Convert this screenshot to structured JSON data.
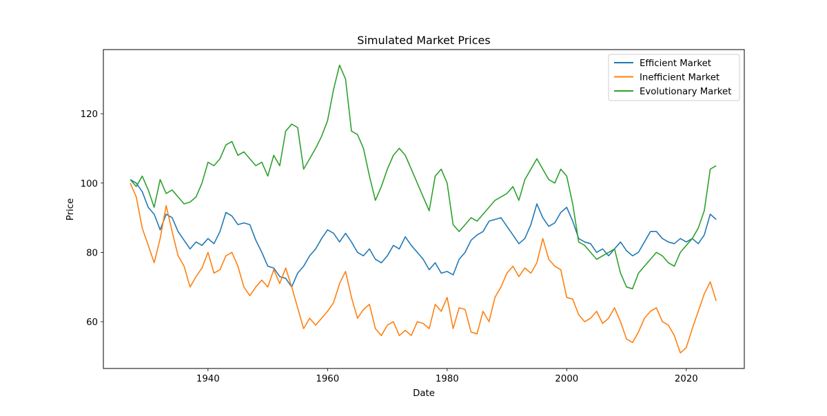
{
  "chart_data": {
    "type": "line",
    "title": "Simulated Market Prices",
    "xlabel": "Date",
    "ylabel": "Price",
    "xlim": [
      1922.5,
      2029.7
    ],
    "ylim": [
      46.5,
      138.5
    ],
    "x_ticks": [
      1940,
      1960,
      1980,
      2000,
      2020
    ],
    "x_tick_labels": [
      "1940",
      "1960",
      "1980",
      "2000",
      "2020"
    ],
    "y_ticks": [
      60,
      80,
      100,
      120
    ],
    "y_tick_labels": [
      "60",
      "80",
      "100",
      "120"
    ],
    "grid": false,
    "legend_position": "top-right",
    "series": [
      {
        "name": "Efficient Market",
        "color": "#1f77b4",
        "points": [
          [
            1927,
            101
          ],
          [
            1928,
            100
          ],
          [
            1929,
            97.5
          ],
          [
            1930,
            93
          ],
          [
            1931,
            91
          ],
          [
            1932,
            86.5
          ],
          [
            1933,
            91
          ],
          [
            1934,
            90
          ],
          [
            1935,
            86
          ],
          [
            1936,
            83.5
          ],
          [
            1937,
            81
          ],
          [
            1938,
            83
          ],
          [
            1939,
            82
          ],
          [
            1940,
            84
          ],
          [
            1941,
            82.5
          ],
          [
            1942,
            86
          ],
          [
            1943,
            91.5
          ],
          [
            1944,
            90.5
          ],
          [
            1945,
            88
          ],
          [
            1946,
            88.5
          ],
          [
            1947,
            88
          ],
          [
            1948,
            83.5
          ],
          [
            1949,
            80
          ],
          [
            1950,
            76
          ],
          [
            1951,
            75.5
          ],
          [
            1952,
            73
          ],
          [
            1953,
            72.5
          ],
          [
            1954,
            70
          ],
          [
            1955,
            74
          ],
          [
            1956,
            76
          ],
          [
            1957,
            79
          ],
          [
            1958,
            81
          ],
          [
            1959,
            84
          ],
          [
            1960,
            86.5
          ],
          [
            1961,
            85.5
          ],
          [
            1962,
            83
          ],
          [
            1963,
            85.5
          ],
          [
            1964,
            83
          ],
          [
            1965,
            80
          ],
          [
            1966,
            79
          ],
          [
            1967,
            81
          ],
          [
            1968,
            78
          ],
          [
            1969,
            77
          ],
          [
            1970,
            79
          ],
          [
            1971,
            82
          ],
          [
            1972,
            81
          ],
          [
            1973,
            84.5
          ],
          [
            1974,
            82
          ],
          [
            1975,
            80
          ],
          [
            1976,
            78
          ],
          [
            1977,
            75
          ],
          [
            1978,
            77
          ],
          [
            1979,
            74
          ],
          [
            1980,
            74.5
          ],
          [
            1981,
            73.5
          ],
          [
            1982,
            78
          ],
          [
            1983,
            80
          ],
          [
            1984,
            83.5
          ],
          [
            1985,
            85
          ],
          [
            1986,
            86
          ],
          [
            1987,
            89
          ],
          [
            1988,
            89.5
          ],
          [
            1989,
            90
          ],
          [
            1990,
            87.5
          ],
          [
            1991,
            85
          ],
          [
            1992,
            82.5
          ],
          [
            1993,
            84
          ],
          [
            1994,
            88
          ],
          [
            1995,
            94
          ],
          [
            1996,
            90
          ],
          [
            1997,
            87.5
          ],
          [
            1998,
            88.5
          ],
          [
            1999,
            91.5
          ],
          [
            2000,
            93
          ],
          [
            2001,
            89
          ],
          [
            2002,
            84
          ],
          [
            2003,
            83
          ],
          [
            2004,
            82.5
          ],
          [
            2005,
            80
          ],
          [
            2006,
            81
          ],
          [
            2007,
            79
          ],
          [
            2008,
            81
          ],
          [
            2009,
            83
          ],
          [
            2010,
            80.5
          ],
          [
            2011,
            79
          ],
          [
            2012,
            80
          ],
          [
            2013,
            83
          ],
          [
            2014,
            86
          ],
          [
            2015,
            86
          ],
          [
            2016,
            84
          ],
          [
            2017,
            83
          ],
          [
            2018,
            82.5
          ],
          [
            2019,
            84
          ],
          [
            2020,
            83
          ],
          [
            2021,
            84
          ],
          [
            2022,
            82.5
          ],
          [
            2023,
            85
          ],
          [
            2024,
            91
          ],
          [
            2025,
            89.5
          ]
        ]
      },
      {
        "name": "Inefficient Market",
        "color": "#ff7f0e",
        "points": [
          [
            1927,
            100
          ],
          [
            1928,
            96
          ],
          [
            1929,
            87
          ],
          [
            1930,
            82
          ],
          [
            1931,
            77
          ],
          [
            1932,
            84
          ],
          [
            1933,
            93.5
          ],
          [
            1934,
            86
          ],
          [
            1935,
            79
          ],
          [
            1936,
            76
          ],
          [
            1937,
            70
          ],
          [
            1938,
            73
          ],
          [
            1939,
            75.5
          ],
          [
            1940,
            80
          ],
          [
            1941,
            74
          ],
          [
            1942,
            75
          ],
          [
            1943,
            79
          ],
          [
            1944,
            80
          ],
          [
            1945,
            76
          ],
          [
            1946,
            70
          ],
          [
            1947,
            67.5
          ],
          [
            1948,
            70
          ],
          [
            1949,
            72
          ],
          [
            1950,
            70
          ],
          [
            1951,
            75
          ],
          [
            1952,
            71
          ],
          [
            1953,
            75.5
          ],
          [
            1954,
            70
          ],
          [
            1955,
            64
          ],
          [
            1956,
            58
          ],
          [
            1957,
            61
          ],
          [
            1958,
            59
          ],
          [
            1959,
            61
          ],
          [
            1960,
            63
          ],
          [
            1961,
            65.5
          ],
          [
            1962,
            71
          ],
          [
            1963,
            74.5
          ],
          [
            1964,
            67
          ],
          [
            1965,
            61
          ],
          [
            1966,
            63.5
          ],
          [
            1967,
            65
          ],
          [
            1968,
            58
          ],
          [
            1969,
            56
          ],
          [
            1970,
            59
          ],
          [
            1971,
            60
          ],
          [
            1972,
            56
          ],
          [
            1973,
            57.5
          ],
          [
            1974,
            56
          ],
          [
            1975,
            60
          ],
          [
            1976,
            59.5
          ],
          [
            1977,
            58
          ],
          [
            1978,
            65
          ],
          [
            1979,
            63
          ],
          [
            1980,
            67
          ],
          [
            1981,
            58
          ],
          [
            1982,
            64
          ],
          [
            1983,
            63.5
          ],
          [
            1984,
            57
          ],
          [
            1985,
            56.5
          ],
          [
            1986,
            63
          ],
          [
            1987,
            60
          ],
          [
            1988,
            67
          ],
          [
            1989,
            70
          ],
          [
            1990,
            74
          ],
          [
            1991,
            76
          ],
          [
            1992,
            73
          ],
          [
            1993,
            75.5
          ],
          [
            1994,
            74
          ],
          [
            1995,
            77
          ],
          [
            1996,
            84
          ],
          [
            1997,
            78
          ],
          [
            1998,
            76
          ],
          [
            1999,
            75
          ],
          [
            2000,
            67
          ],
          [
            2001,
            66.5
          ],
          [
            2002,
            62
          ],
          [
            2003,
            60
          ],
          [
            2004,
            61
          ],
          [
            2005,
            63
          ],
          [
            2006,
            59.5
          ],
          [
            2007,
            61
          ],
          [
            2008,
            64
          ],
          [
            2009,
            60
          ],
          [
            2010,
            55
          ],
          [
            2011,
            54
          ],
          [
            2012,
            57
          ],
          [
            2013,
            61
          ],
          [
            2014,
            63
          ],
          [
            2015,
            64
          ],
          [
            2016,
            60
          ],
          [
            2017,
            59
          ],
          [
            2018,
            56
          ],
          [
            2019,
            51
          ],
          [
            2020,
            52.5
          ],
          [
            2021,
            58
          ],
          [
            2022,
            63
          ],
          [
            2023,
            68
          ],
          [
            2024,
            71.5
          ],
          [
            2025,
            66
          ]
        ]
      },
      {
        "name": "Evolutionary Market",
        "color": "#2ca02c",
        "points": [
          [
            1927,
            101
          ],
          [
            1928,
            99
          ],
          [
            1929,
            102
          ],
          [
            1930,
            98
          ],
          [
            1931,
            93
          ],
          [
            1932,
            101
          ],
          [
            1933,
            97
          ],
          [
            1934,
            98
          ],
          [
            1935,
            96
          ],
          [
            1936,
            94
          ],
          [
            1937,
            94.5
          ],
          [
            1938,
            96
          ],
          [
            1939,
            100
          ],
          [
            1940,
            106
          ],
          [
            1941,
            105
          ],
          [
            1942,
            107
          ],
          [
            1943,
            111
          ],
          [
            1944,
            112
          ],
          [
            1945,
            108
          ],
          [
            1946,
            109
          ],
          [
            1947,
            107
          ],
          [
            1948,
            105
          ],
          [
            1949,
            106
          ],
          [
            1950,
            102
          ],
          [
            1951,
            108
          ],
          [
            1952,
            105
          ],
          [
            1953,
            115
          ],
          [
            1954,
            117
          ],
          [
            1955,
            116
          ],
          [
            1956,
            104
          ],
          [
            1957,
            107
          ],
          [
            1958,
            110
          ],
          [
            1959,
            113.5
          ],
          [
            1960,
            118
          ],
          [
            1961,
            127
          ],
          [
            1962,
            134
          ],
          [
            1963,
            130
          ],
          [
            1964,
            115
          ],
          [
            1965,
            114
          ],
          [
            1966,
            110
          ],
          [
            1967,
            102
          ],
          [
            1968,
            95
          ],
          [
            1969,
            99
          ],
          [
            1970,
            104
          ],
          [
            1971,
            108
          ],
          [
            1972,
            110
          ],
          [
            1973,
            108
          ],
          [
            1974,
            104
          ],
          [
            1975,
            100
          ],
          [
            1976,
            96
          ],
          [
            1977,
            92
          ],
          [
            1978,
            102
          ],
          [
            1979,
            104
          ],
          [
            1980,
            100
          ],
          [
            1981,
            88
          ],
          [
            1982,
            86
          ],
          [
            1983,
            88
          ],
          [
            1984,
            90
          ],
          [
            1985,
            89
          ],
          [
            1986,
            91
          ],
          [
            1987,
            93
          ],
          [
            1988,
            95
          ],
          [
            1989,
            96
          ],
          [
            1990,
            97
          ],
          [
            1991,
            99
          ],
          [
            1992,
            95
          ],
          [
            1993,
            101
          ],
          [
            1994,
            104
          ],
          [
            1995,
            107
          ],
          [
            1996,
            104
          ],
          [
            1997,
            101
          ],
          [
            1998,
            100
          ],
          [
            1999,
            104
          ],
          [
            2000,
            102
          ],
          [
            2001,
            94
          ],
          [
            2002,
            83
          ],
          [
            2003,
            82
          ],
          [
            2004,
            80
          ],
          [
            2005,
            78
          ],
          [
            2006,
            79
          ],
          [
            2007,
            80
          ],
          [
            2008,
            81
          ],
          [
            2009,
            74
          ],
          [
            2010,
            70
          ],
          [
            2011,
            69.5
          ],
          [
            2012,
            74
          ],
          [
            2013,
            76
          ],
          [
            2014,
            78
          ],
          [
            2015,
            80
          ],
          [
            2016,
            79
          ],
          [
            2017,
            77
          ],
          [
            2018,
            76
          ],
          [
            2019,
            80
          ],
          [
            2020,
            82
          ],
          [
            2021,
            84
          ],
          [
            2022,
            87
          ],
          [
            2023,
            92
          ],
          [
            2024,
            104
          ],
          [
            2025,
            105
          ]
        ]
      }
    ]
  }
}
